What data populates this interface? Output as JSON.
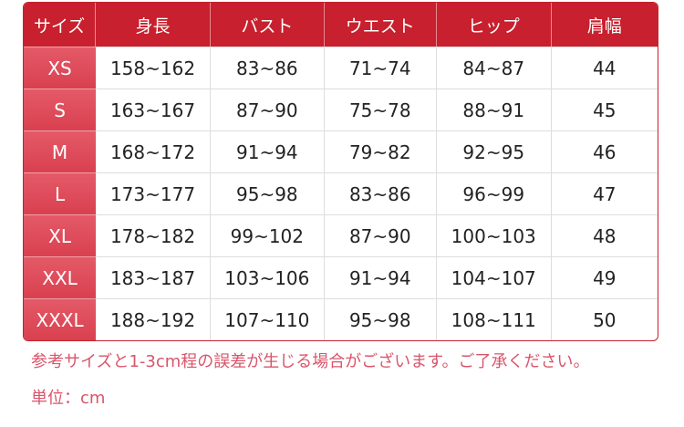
{
  "headers": [
    "サイズ",
    "身長",
    "バスト",
    "ウエスト",
    "ヒップ",
    "肩幅"
  ],
  "rows": [
    [
      "XS",
      "158~162",
      "83~86",
      "71~74",
      "84~87",
      "44"
    ],
    [
      "S",
      "163~167",
      "87~90",
      "75~78",
      "88~91",
      "45"
    ],
    [
      "M",
      "168~172",
      "91~94",
      "79~82",
      "92~95",
      "46"
    ],
    [
      "L",
      "173~177",
      "95~98",
      "83~86",
      "96~99",
      "47"
    ],
    [
      "XL",
      "178~182",
      "99~102",
      "87~90",
      "100~103",
      "48"
    ],
    [
      "XXL",
      "183~187",
      "103~106",
      "91~94",
      "104~107",
      "49"
    ],
    [
      "XXXL",
      "188~192",
      "107~110",
      "95~98",
      "108~111",
      "50"
    ]
  ],
  "note": "参考サイズと1-3cm程の誤差が生じる場合がございます。ご了承ください。",
  "unit": "単位：cm",
  "colors": {
    "header": "#c8202e",
    "size_column": "#e04f5e",
    "note": "#d9556a"
  }
}
